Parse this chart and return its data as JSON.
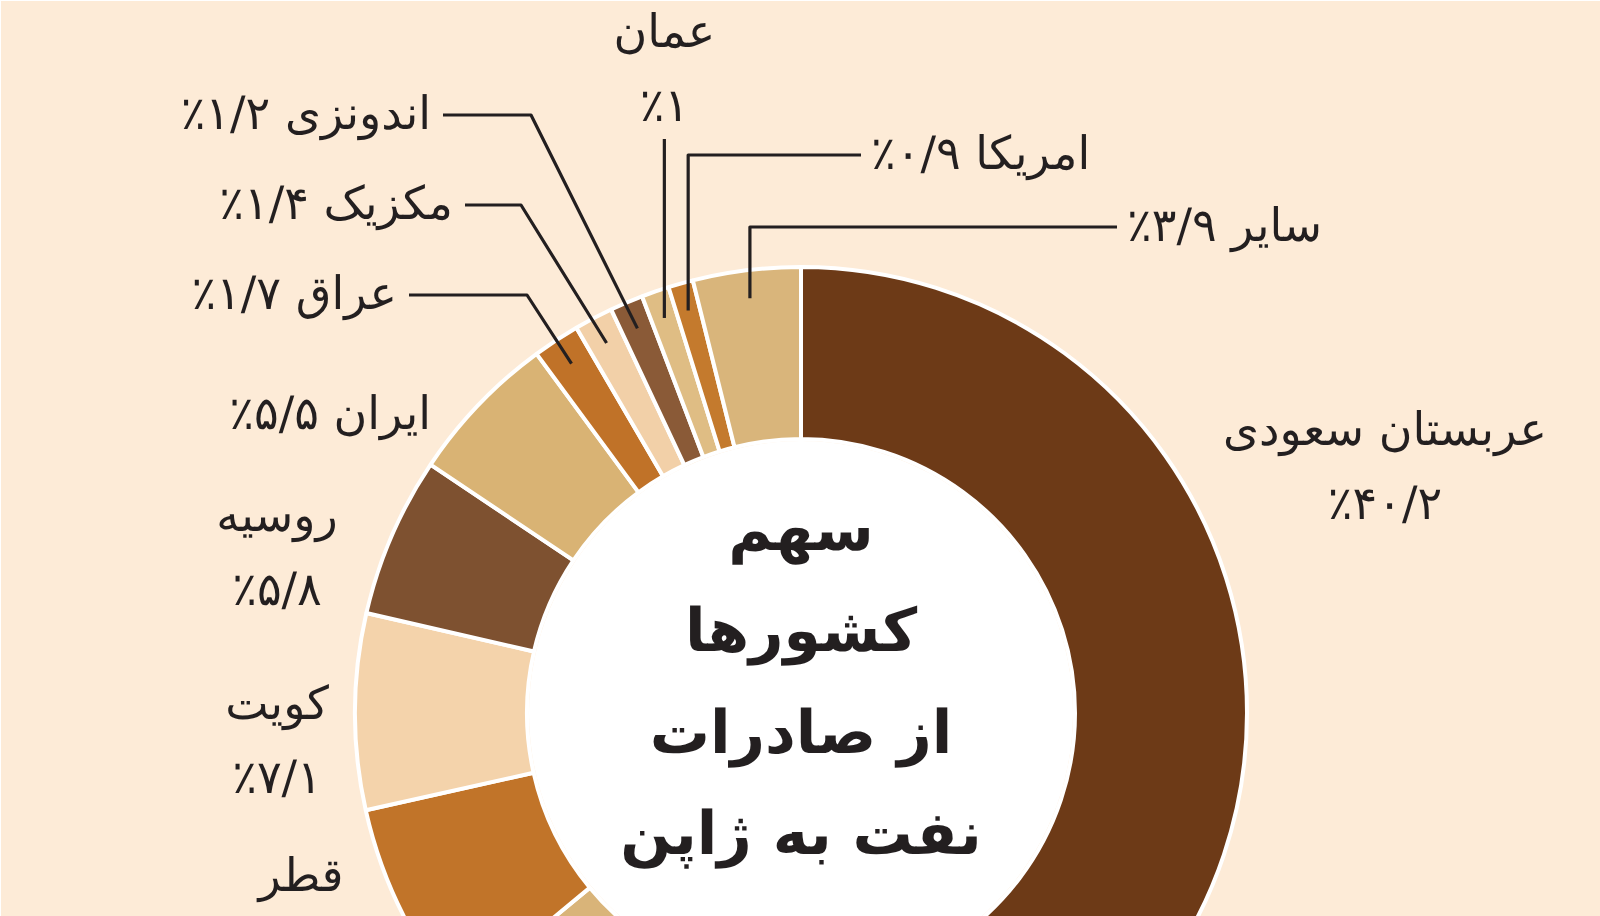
{
  "chart_data": {
    "type": "donut",
    "title": "سهم\nکشورها\nاز صادرات\nنفت به ژاپن",
    "categories": [
      "عربستان سعودی",
      null,
      "قطر",
      "کویت",
      "روسیه",
      "ایران",
      "عراق",
      "مکزیک",
      "اندونزی",
      "عمان",
      "امریکا",
      "سایر"
    ],
    "values": [
      40.2,
      23.8,
      7.5,
      7.1,
      5.8,
      5.5,
      1.7,
      1.4,
      1.2,
      1.0,
      0.9,
      3.9
    ],
    "colors": [
      "#6d3a17",
      "#d9b479",
      "#c17429",
      "#f4d3ab",
      "#7e5130",
      "#d9b374",
      "#c07228",
      "#f2d0a8",
      "#8a5a37",
      "#dfbd84",
      "#c47a2d",
      "#d9b57b"
    ],
    "value_labels": [
      "٪۴۰/۲",
      null,
      null,
      "٪۷/۱",
      "٪۵/۸",
      "٪۵/۵",
      "٪۱/۷",
      "٪۱/۴",
      "٪۱/۲",
      "٪۱",
      "٪۰/۹",
      "٪۳/۹"
    ]
  }
}
